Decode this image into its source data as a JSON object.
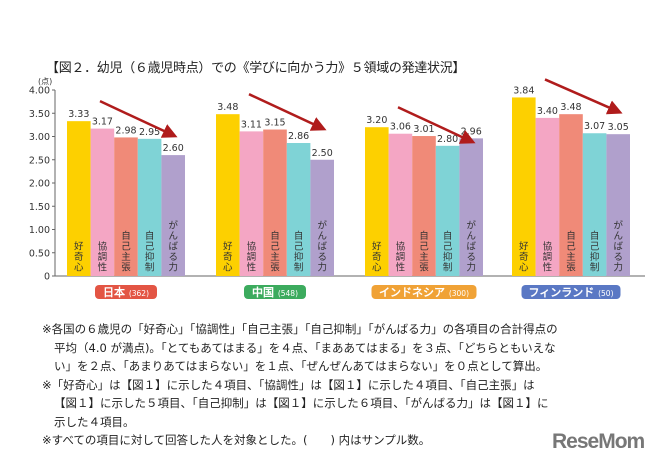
{
  "chart_data": {
    "type": "bar",
    "title": "【図２．幼児（６歳児時点）での《学びに向かう力》５領域の発達状況】",
    "ylabel": "(点)",
    "ylim": [
      0,
      4
    ],
    "yticks": [
      "0",
      "0.50",
      "1.00",
      "1.50",
      "2.00",
      "2.50",
      "3.00",
      "3.50",
      "4.00"
    ],
    "categories": [
      "好奇心",
      "協調性",
      "自己主張",
      "自己抑制",
      "がんばる力"
    ],
    "category_colors": [
      "#fdd000",
      "#f4a6c4",
      "#f08a78",
      "#7fd3d6",
      "#b0a0cc"
    ],
    "groups": [
      {
        "name": "日本",
        "sample": "(362)",
        "color": "#e35544",
        "values": [
          3.33,
          3.17,
          2.98,
          2.95,
          2.6
        ],
        "labels": [
          "3.33",
          "3.17",
          "2.98",
          "2.95",
          "2.60"
        ]
      },
      {
        "name": "中国",
        "sample": "(548)",
        "color": "#3cab5e",
        "values": [
          3.48,
          3.11,
          3.15,
          2.86,
          2.5
        ],
        "labels": [
          "3.48",
          "3.11",
          "3.15",
          "2.86",
          "2.50"
        ]
      },
      {
        "name": "インドネシア",
        "sample": "(300)",
        "color": "#f0a236",
        "values": [
          3.2,
          3.06,
          3.01,
          2.8,
          2.96
        ],
        "labels": [
          "3.20",
          "3.06",
          "3.01",
          "2.80",
          "2.96"
        ]
      },
      {
        "name": "フィンランド",
        "sample": "(50)",
        "color": "#5a78c4",
        "values": [
          3.84,
          3.4,
          3.48,
          3.07,
          3.05
        ],
        "labels": [
          "3.84",
          "3.40",
          "3.48",
          "3.07",
          "3.05"
        ]
      }
    ],
    "arrow_color": "#b01c1c",
    "grid": false
  },
  "notes": [
    "※各国の６歳児の「好奇心」「協調性」「自己主張」「自己抑制」「がんばる力」の各項目の合計得点の",
    "平均（4.0 が満点)。「とてもあてはまる」を４点、「まああてはまる」を３点、「どちらともいえな",
    "い」を２点、「あまりあてはまらない」を１点、「ぜんぜんあてはまらない」を０点として算出。",
    "※「好奇心」は【図１】に示した４項目、「協調性」は【図１】に示した４項目、「自己主張」は",
    "【図１】に示した５項目、「自己抑制」は【図１】に示した６項目、「がんばる力」は【図１】に",
    "示した４項目。",
    "※すべての項目に対して回答した人を対象とした。(　　) 内はサンプル数。"
  ],
  "logo": "ReseMom"
}
